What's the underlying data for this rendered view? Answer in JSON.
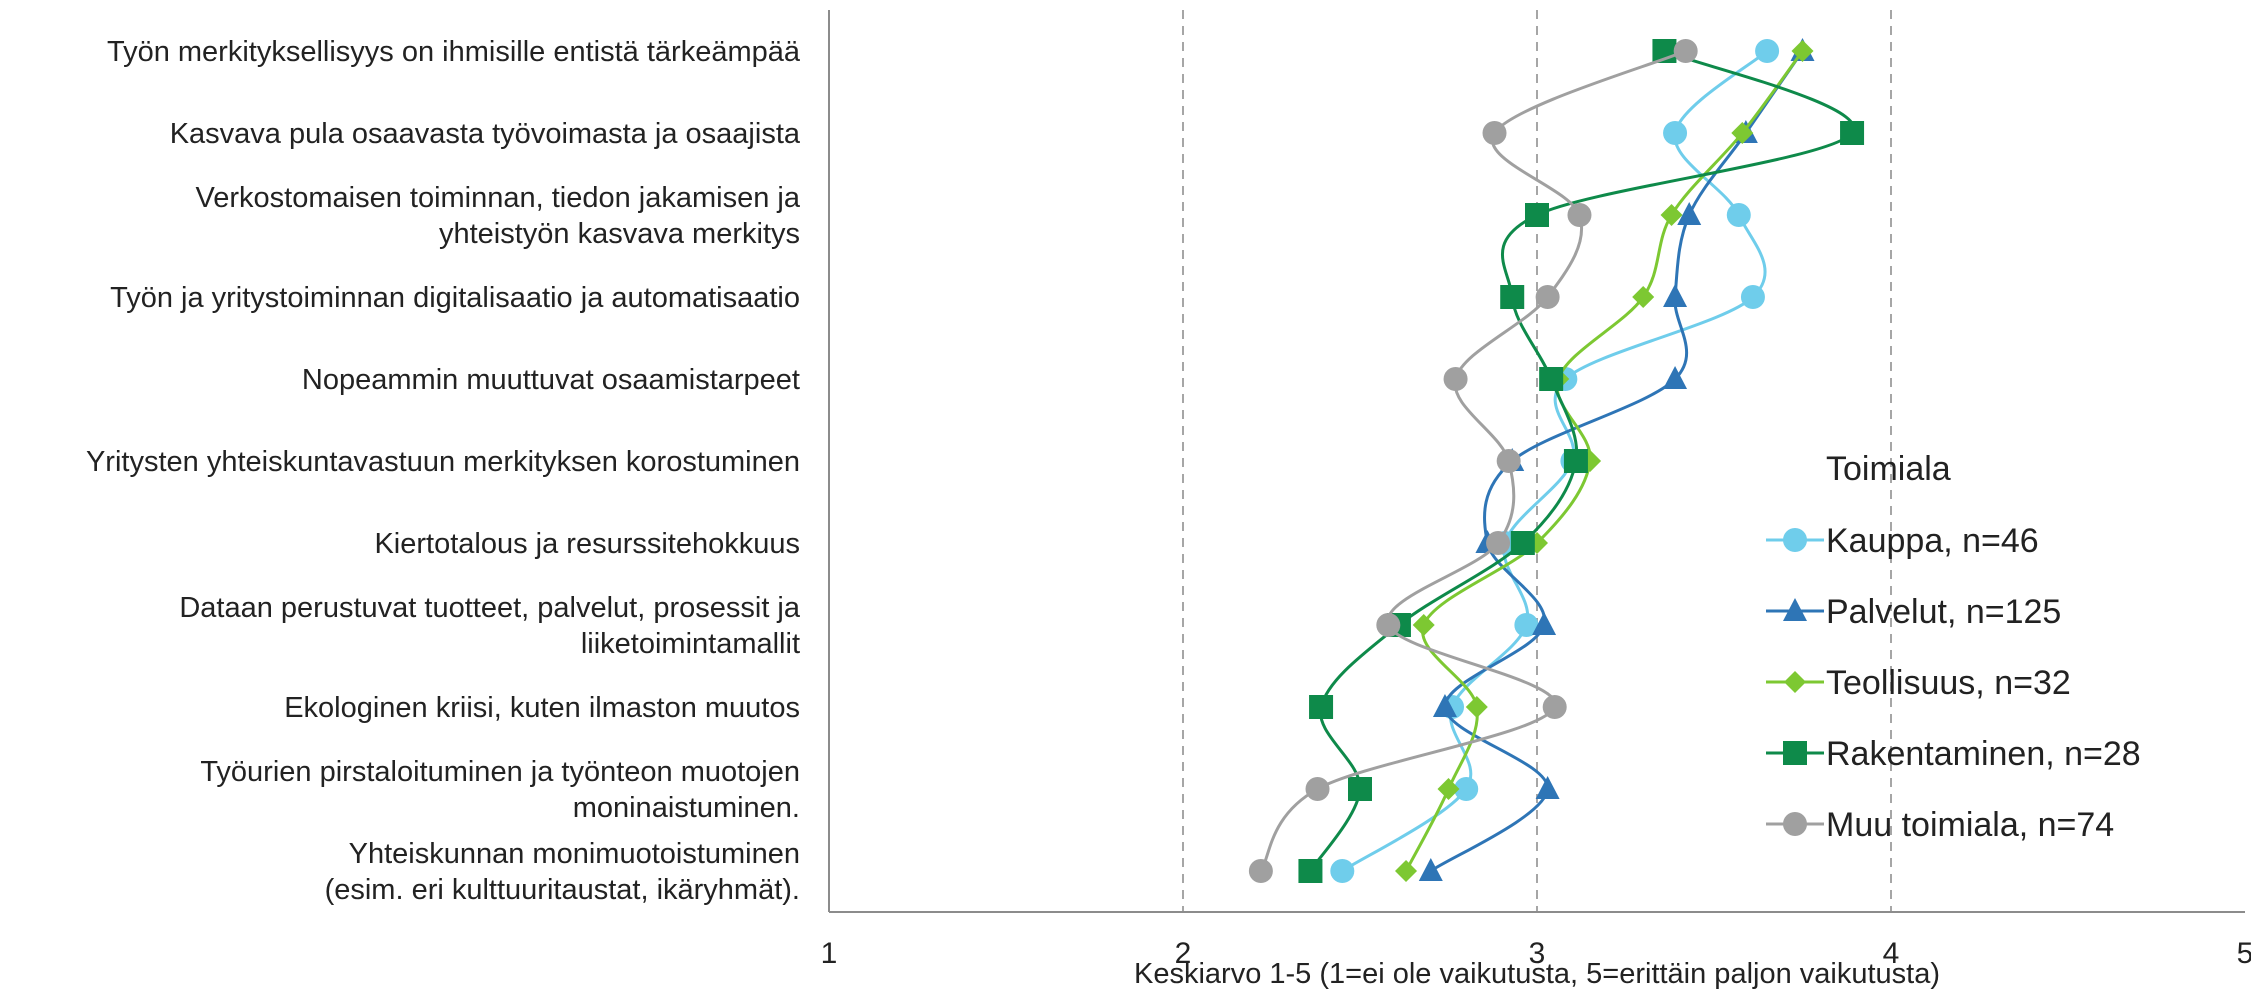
{
  "chart_data": {
    "type": "line",
    "orientation": "horizontal",
    "categories": [
      [
        "Työn merkityksellisyys on ihmisille entistä tärkeämpää"
      ],
      [
        "Kasvava pula osaavasta työvoimasta ja osaajista"
      ],
      [
        "Verkostomaisen toiminnan, tiedon jakamisen ja",
        "yhteistyön kasvava merkitys"
      ],
      [
        "Työn ja yritystoiminnan digitalisaatio ja automatisaatio"
      ],
      [
        "Nopeammin muuttuvat osaamistarpeet"
      ],
      [
        "Yritysten yhteiskuntavastuun merkityksen korostuminen"
      ],
      [
        "Kiertotalous ja resurssitehokkuus"
      ],
      [
        "Dataan perustuvat tuotteet, palvelut, prosessit ja",
        "liiketoimintamallit"
      ],
      [
        "Ekologinen kriisi, kuten ilmaston muutos"
      ],
      [
        "Työurien pirstaloituminen ja työnteon muotojen",
        "moninaistuminen."
      ],
      [
        "Yhteiskunnan monimuotoistuminen",
        "(esim. eri kulttuuritaustat, ikäryhmät)."
      ]
    ],
    "series": [
      {
        "name": "Kauppa, n=46",
        "color": "#6fcdeb",
        "marker": "circle",
        "values": [
          3.65,
          3.39,
          3.57,
          3.61,
          3.08,
          3.1,
          2.91,
          2.97,
          2.76,
          2.8,
          2.45
        ]
      },
      {
        "name": "Palvelut, n=125",
        "color": "#2e75b6",
        "marker": "triangle",
        "values": [
          3.75,
          3.59,
          3.43,
          3.39,
          3.39,
          2.93,
          2.86,
          3.02,
          2.74,
          3.03,
          2.7
        ]
      },
      {
        "name": "Teollisuus, n=32",
        "color": "#7dc832",
        "marker": "diamond",
        "values": [
          3.75,
          3.58,
          3.38,
          3.3,
          3.06,
          3.15,
          3.0,
          2.68,
          2.83,
          2.75,
          2.63
        ]
      },
      {
        "name": "Rakentaminen, n=28",
        "color": "#0e8a4a",
        "marker": "square",
        "values": [
          3.36,
          3.89,
          3.0,
          2.93,
          3.04,
          3.11,
          2.96,
          2.61,
          2.39,
          2.5,
          2.36
        ]
      },
      {
        "name": "Muu toimiala, n=74",
        "color": "#a0a0a0",
        "marker": "circle",
        "values": [
          3.42,
          2.88,
          3.12,
          3.03,
          2.77,
          2.92,
          2.89,
          2.58,
          3.05,
          2.38,
          2.22
        ]
      }
    ],
    "xlim": [
      1,
      5
    ],
    "xticks": [
      "1",
      "2",
      "3",
      "4",
      "5"
    ],
    "xlabel": "Keskiarvo 1-5 (1=ei ole vaikutusta, 5=erittäin paljon vaikutusta)",
    "grid": "vertical dashed",
    "legend_title": "Toimiala",
    "legend_position": "right"
  }
}
